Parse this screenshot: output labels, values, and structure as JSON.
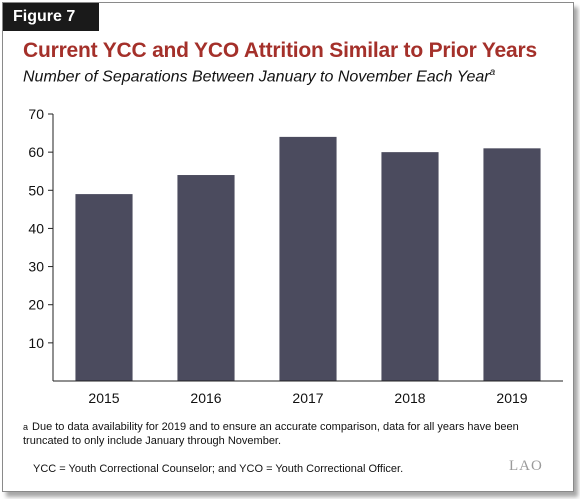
{
  "figure_label": "Figure 7",
  "title": "Current YCC and YCO Attrition Similar to Prior Years",
  "subtitle": "Number of Separations Between January to November Each Year",
  "subtitle_marker": "a",
  "footnote_marker": "a",
  "footnote": "Due to  data availability for 2019 and to ensure an accurate comparison, data for all years have been truncated to only include January through November.",
  "abbreviations": "YCC = Youth Correctional Counselor; and YCO = Youth Correctional Officer.",
  "logo": "LAO",
  "colors": {
    "bar": "#4b4b5e",
    "title": "#a4302a",
    "gridline": "#222222"
  },
  "chart_data": {
    "type": "bar",
    "categories": [
      "2015",
      "2016",
      "2017",
      "2018",
      "2019"
    ],
    "values": [
      49,
      54,
      64,
      60,
      61
    ],
    "ylim": [
      0,
      70
    ],
    "yticks": [
      10,
      20,
      30,
      40,
      50,
      60,
      70
    ],
    "grid": false,
    "legend": "none"
  }
}
